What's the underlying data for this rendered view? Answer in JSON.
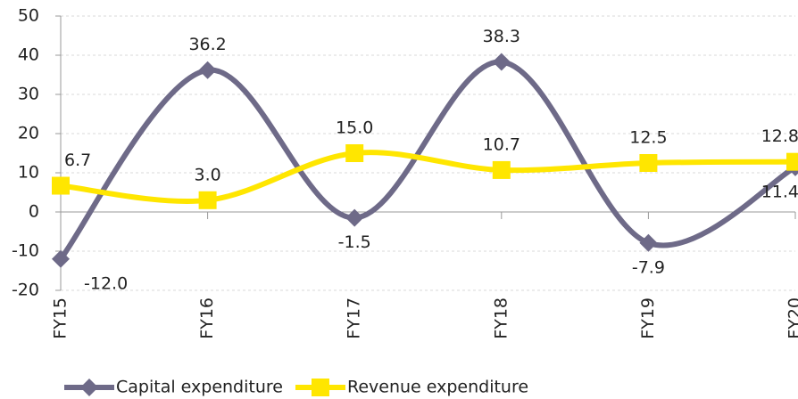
{
  "chart_data": {
    "type": "line",
    "categories": [
      "FY15",
      "FY16",
      "FY17",
      "FY18",
      "FY19",
      "FY20"
    ],
    "series": [
      {
        "name": "Capital expenditure",
        "color": "#6e6a88",
        "marker": "diamond",
        "values": [
          -12.0,
          36.2,
          -1.5,
          38.3,
          -7.9,
          11.4
        ],
        "value_labels": [
          "-12.0",
          "36.2",
          "-1.5",
          "38.3",
          "-7.9",
          "11.4"
        ]
      },
      {
        "name": "Revenue expenditure",
        "color": "#ffe600",
        "marker": "square",
        "values": [
          6.7,
          3.0,
          15.0,
          10.7,
          12.5,
          12.8
        ],
        "value_labels": [
          "6.7",
          "3.0",
          "15.0",
          "10.7",
          "12.5",
          "12.8"
        ]
      }
    ],
    "ylim": [
      -20,
      50
    ],
    "yticks": [
      -20,
      -10,
      0,
      10,
      20,
      30,
      40,
      50
    ],
    "grid": true,
    "smooth": true,
    "legend": "bottom"
  }
}
